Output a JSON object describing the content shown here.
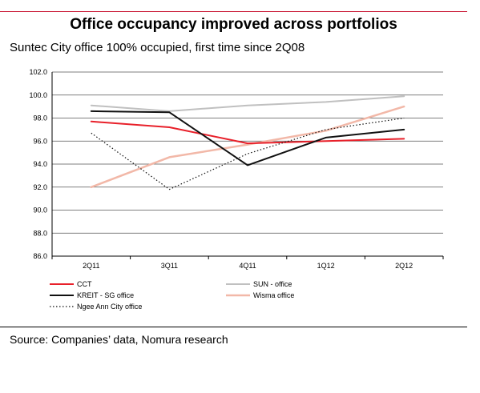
{
  "header": {
    "title": "Office occupancy improved across portfolios",
    "subtitle": "Suntec City office 100% occupied, first time since 2Q08"
  },
  "footer": {
    "source": "Source: Companies’ data, Nomura research"
  },
  "chart_data": {
    "type": "line",
    "categories": [
      "2Q11",
      "3Q11",
      "4Q11",
      "1Q12",
      "2Q12"
    ],
    "ylim": [
      86.0,
      102.0
    ],
    "yticks": [
      "86.0",
      "88.0",
      "90.0",
      "92.0",
      "94.0",
      "96.0",
      "98.0",
      "100.0",
      "102.0"
    ],
    "grid": true,
    "legend_position": "bottom",
    "series": [
      {
        "name": "CCT",
        "color": "#e8202a",
        "dash": "solid",
        "width": 2,
        "values": [
          97.7,
          97.2,
          95.8,
          96.0,
          96.2
        ]
      },
      {
        "name": "SUN - office",
        "color": "#c0c0c0",
        "dash": "solid",
        "width": 2,
        "values": [
          99.1,
          98.6,
          99.1,
          99.4,
          99.9
        ]
      },
      {
        "name": "KREIT - SG office",
        "color": "#111111",
        "dash": "solid",
        "width": 2,
        "values": [
          98.6,
          98.5,
          93.9,
          96.3,
          97.0
        ]
      },
      {
        "name": "Wisma office",
        "color": "#f2b8a8",
        "dash": "solid",
        "width": 2.5,
        "values": [
          92.0,
          94.6,
          95.7,
          96.9,
          99.0
        ]
      },
      {
        "name": "Ngee Ann City office",
        "color": "#111111",
        "dash": "dotted",
        "width": 1.2,
        "values": [
          96.7,
          91.8,
          94.9,
          97.0,
          98.0
        ]
      }
    ]
  }
}
